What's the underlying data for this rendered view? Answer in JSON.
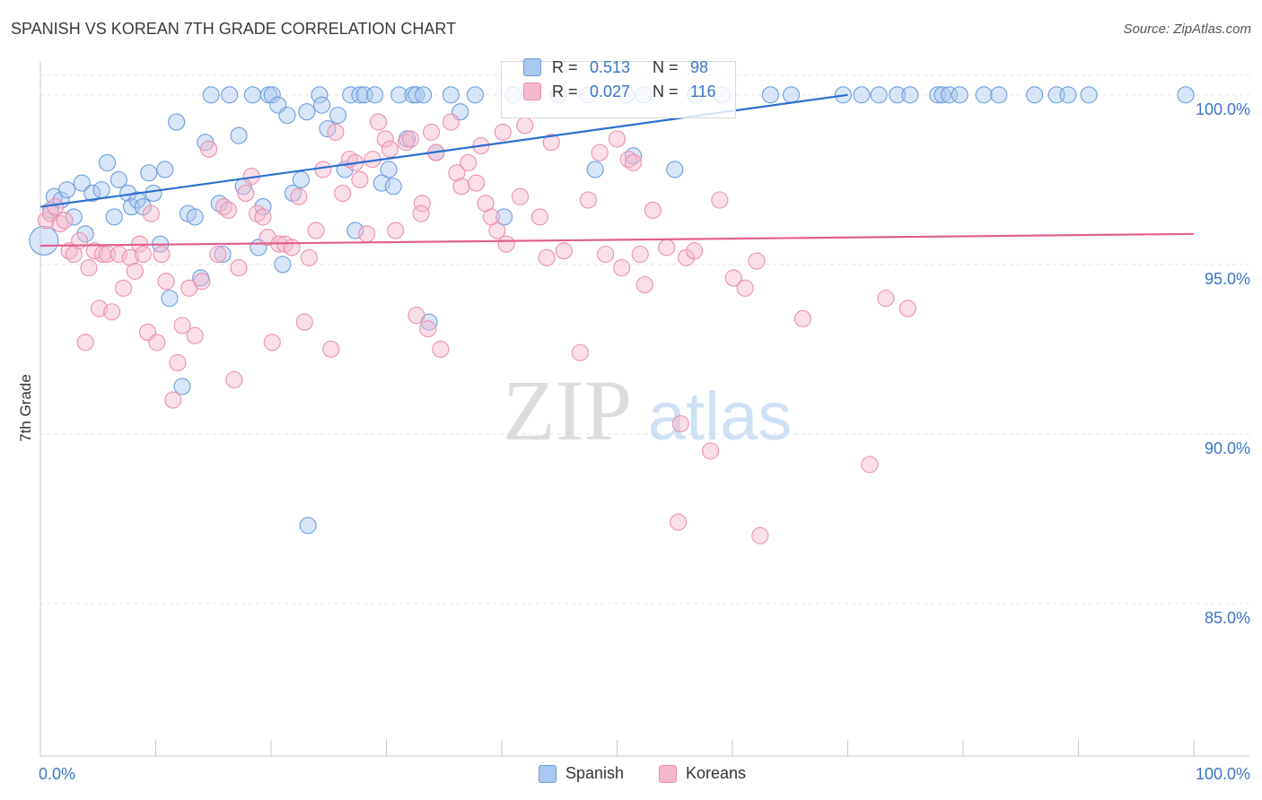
{
  "header": {
    "title": "SPANISH VS KOREAN 7TH GRADE CORRELATION CHART",
    "source": "Source: ZipAtlas.com"
  },
  "watermark": {
    "zip": "ZIP",
    "atlas": "atlas"
  },
  "legend_box": {
    "rows": [
      {
        "r_label": "R =",
        "r_value": "0.513",
        "n_label": "N =",
        "n_value": "98"
      },
      {
        "r_label": "R =",
        "r_value": "0.027",
        "n_label": "N =",
        "n_value": "116"
      }
    ]
  },
  "colors": {
    "spanish_fill": "#aac8f0",
    "spanish_stroke": "#6b9de0",
    "spanish_line": "#2a6fcf",
    "koreans_fill": "#f6b9cc",
    "koreans_stroke": "#ec8fad",
    "koreans_line": "#e0608c",
    "axis_label": "#3a74c8",
    "grid": "#e3e3e3"
  },
  "chart_data": {
    "type": "scatter",
    "title": "SPANISH VS KOREAN 7TH GRADE CORRELATION CHART",
    "xlabel": "",
    "ylabel": "7th Grade",
    "xlim": [
      0,
      100
    ],
    "ylim": [
      80.5,
      101
    ],
    "x_tick_labels": [
      "0.0%",
      "100.0%"
    ],
    "y_ticks": [
      85,
      90,
      95,
      100
    ],
    "y_tick_labels": [
      "85.0%",
      "90.0%",
      "95.0%",
      "100.0%"
    ],
    "grid": true,
    "legend_placement": "bottom-center",
    "series": [
      {
        "name": "Spanish",
        "r": 0.513,
        "n": 98,
        "trend": {
          "x": [
            0,
            70
          ],
          "y": [
            96.7,
            100.0
          ]
        },
        "points": [
          [
            0.3,
            95.7
          ],
          [
            0.9,
            96.6
          ],
          [
            1.2,
            97.0
          ],
          [
            1.8,
            96.9
          ],
          [
            2.3,
            97.2
          ],
          [
            2.9,
            96.4
          ],
          [
            3.6,
            97.4
          ],
          [
            3.9,
            95.9
          ],
          [
            4.5,
            97.1
          ],
          [
            5.3,
            97.2
          ],
          [
            5.8,
            98.0
          ],
          [
            6.4,
            96.4
          ],
          [
            6.8,
            97.5
          ],
          [
            7.6,
            97.1
          ],
          [
            7.9,
            96.7
          ],
          [
            8.4,
            96.9
          ],
          [
            8.9,
            96.7
          ],
          [
            9.4,
            97.7
          ],
          [
            9.8,
            97.1
          ],
          [
            10.4,
            95.6
          ],
          [
            10.8,
            97.8
          ],
          [
            11.2,
            94.0
          ],
          [
            11.8,
            99.2
          ],
          [
            12.3,
            91.4
          ],
          [
            12.8,
            96.5
          ],
          [
            13.4,
            96.4
          ],
          [
            13.9,
            94.6
          ],
          [
            14.3,
            98.6
          ],
          [
            14.8,
            100.0
          ],
          [
            15.5,
            96.8
          ],
          [
            15.8,
            95.3
          ],
          [
            16.4,
            100.0
          ],
          [
            17.2,
            98.8
          ],
          [
            17.6,
            97.3
          ],
          [
            18.4,
            100.0
          ],
          [
            18.9,
            95.5
          ],
          [
            19.3,
            96.7
          ],
          [
            19.8,
            100.0
          ],
          [
            20.1,
            100.0
          ],
          [
            20.6,
            99.7
          ],
          [
            21.0,
            95.0
          ],
          [
            21.4,
            99.4
          ],
          [
            21.9,
            97.1
          ],
          [
            22.6,
            97.5
          ],
          [
            23.2,
            87.3
          ],
          [
            23.1,
            99.5
          ],
          [
            24.2,
            100.0
          ],
          [
            24.4,
            99.7
          ],
          [
            24.9,
            99.0
          ],
          [
            25.8,
            99.4
          ],
          [
            26.4,
            97.8
          ],
          [
            26.9,
            100.0
          ],
          [
            27.3,
            96.0
          ],
          [
            27.7,
            100.0
          ],
          [
            28.1,
            100.0
          ],
          [
            29.0,
            100.0
          ],
          [
            29.6,
            97.4
          ],
          [
            30.2,
            97.8
          ],
          [
            30.6,
            97.3
          ],
          [
            31.1,
            100.0
          ],
          [
            31.8,
            98.7
          ],
          [
            32.3,
            100.0
          ],
          [
            32.6,
            100.0
          ],
          [
            33.2,
            100.0
          ],
          [
            33.7,
            93.3
          ],
          [
            34.3,
            98.3
          ],
          [
            35.6,
            100.0
          ],
          [
            36.4,
            99.5
          ],
          [
            37.7,
            100.0
          ],
          [
            40.2,
            96.4
          ],
          [
            41.0,
            100.0
          ],
          [
            44.9,
            100.0
          ],
          [
            47.5,
            100.0
          ],
          [
            48.1,
            97.8
          ],
          [
            50.8,
            100.0
          ],
          [
            51.4,
            98.2
          ],
          [
            52.3,
            100.0
          ],
          [
            55.0,
            97.8
          ],
          [
            56.8,
            100.0
          ],
          [
            59.1,
            100.0
          ],
          [
            63.3,
            100.0
          ],
          [
            65.1,
            100.0
          ],
          [
            69.6,
            100.0
          ],
          [
            71.2,
            100.0
          ],
          [
            72.7,
            100.0
          ],
          [
            74.3,
            100.0
          ],
          [
            75.4,
            100.0
          ],
          [
            77.8,
            100.0
          ],
          [
            78.2,
            100.0
          ],
          [
            78.8,
            100.0
          ],
          [
            79.7,
            100.0
          ],
          [
            81.8,
            100.0
          ],
          [
            83.1,
            100.0
          ],
          [
            86.2,
            100.0
          ],
          [
            88.1,
            100.0
          ],
          [
            89.1,
            100.0
          ],
          [
            90.9,
            100.0
          ],
          [
            99.3,
            100.0
          ]
        ]
      },
      {
        "name": "Koreans",
        "r": 0.027,
        "n": 116,
        "trend": {
          "x": [
            0,
            100
          ],
          "y": [
            95.55,
            95.9
          ]
        },
        "points": [
          [
            0.5,
            96.3
          ],
          [
            0.9,
            96.5
          ],
          [
            1.3,
            96.7
          ],
          [
            1.7,
            96.2
          ],
          [
            2.1,
            96.3
          ],
          [
            2.5,
            95.4
          ],
          [
            2.9,
            95.3
          ],
          [
            3.4,
            95.7
          ],
          [
            3.9,
            92.7
          ],
          [
            4.2,
            94.9
          ],
          [
            4.7,
            95.4
          ],
          [
            5.1,
            93.7
          ],
          [
            5.4,
            95.3
          ],
          [
            5.8,
            95.3
          ],
          [
            6.2,
            93.6
          ],
          [
            6.8,
            95.3
          ],
          [
            7.2,
            94.3
          ],
          [
            7.8,
            95.2
          ],
          [
            8.2,
            94.8
          ],
          [
            8.6,
            95.6
          ],
          [
            8.9,
            95.3
          ],
          [
            9.3,
            93.0
          ],
          [
            9.6,
            96.5
          ],
          [
            10.1,
            92.7
          ],
          [
            10.5,
            95.3
          ],
          [
            10.9,
            94.5
          ],
          [
            11.5,
            91.0
          ],
          [
            11.9,
            92.1
          ],
          [
            12.3,
            93.2
          ],
          [
            12.9,
            94.3
          ],
          [
            13.4,
            92.9
          ],
          [
            14.0,
            94.5
          ],
          [
            14.6,
            98.4
          ],
          [
            15.4,
            95.3
          ],
          [
            15.9,
            96.7
          ],
          [
            16.3,
            96.6
          ],
          [
            16.8,
            91.6
          ],
          [
            17.2,
            94.9
          ],
          [
            17.8,
            97.1
          ],
          [
            18.3,
            97.6
          ],
          [
            18.8,
            96.5
          ],
          [
            19.3,
            96.4
          ],
          [
            19.7,
            95.8
          ],
          [
            20.1,
            92.7
          ],
          [
            20.7,
            95.6
          ],
          [
            21.2,
            95.6
          ],
          [
            21.8,
            95.5
          ],
          [
            22.4,
            97.0
          ],
          [
            22.9,
            93.3
          ],
          [
            23.3,
            95.2
          ],
          [
            23.9,
            96.0
          ],
          [
            24.5,
            97.8
          ],
          [
            25.2,
            92.5
          ],
          [
            25.6,
            98.9
          ],
          [
            26.2,
            97.1
          ],
          [
            26.8,
            98.1
          ],
          [
            27.3,
            98.0
          ],
          [
            27.7,
            97.5
          ],
          [
            28.3,
            95.9
          ],
          [
            28.8,
            98.1
          ],
          [
            29.3,
            99.2
          ],
          [
            29.9,
            98.7
          ],
          [
            30.3,
            98.4
          ],
          [
            30.8,
            96.0
          ],
          [
            31.7,
            98.6
          ],
          [
            32.1,
            98.7
          ],
          [
            32.6,
            93.5
          ],
          [
            33.1,
            96.8
          ],
          [
            33.6,
            93.1
          ],
          [
            33.9,
            98.9
          ],
          [
            34.3,
            98.3
          ],
          [
            34.7,
            92.5
          ],
          [
            35.6,
            99.2
          ],
          [
            36.1,
            97.7
          ],
          [
            36.5,
            97.3
          ],
          [
            37.1,
            98.0
          ],
          [
            37.8,
            97.4
          ],
          [
            38.2,
            98.5
          ],
          [
            38.6,
            96.8
          ],
          [
            39.1,
            96.4
          ],
          [
            39.6,
            96.0
          ],
          [
            40.1,
            98.9
          ],
          [
            40.4,
            95.6
          ],
          [
            41.6,
            97.0
          ],
          [
            42.0,
            99.1
          ],
          [
            43.3,
            96.4
          ],
          [
            43.9,
            95.2
          ],
          [
            44.3,
            98.6
          ],
          [
            45.4,
            95.4
          ],
          [
            46.8,
            92.4
          ],
          [
            47.5,
            96.9
          ],
          [
            48.5,
            98.3
          ],
          [
            49.0,
            95.3
          ],
          [
            50.0,
            98.7
          ],
          [
            50.4,
            94.9
          ],
          [
            51.0,
            98.1
          ],
          [
            51.4,
            98.0
          ],
          [
            52.0,
            95.3
          ],
          [
            52.4,
            94.4
          ],
          [
            53.1,
            96.6
          ],
          [
            54.3,
            95.5
          ],
          [
            55.5,
            90.3
          ],
          [
            56.0,
            95.2
          ],
          [
            58.1,
            89.5
          ],
          [
            58.9,
            96.9
          ],
          [
            60.1,
            94.6
          ],
          [
            61.1,
            94.3
          ],
          [
            62.1,
            95.1
          ],
          [
            62.4,
            87.0
          ],
          [
            66.1,
            93.4
          ],
          [
            71.9,
            89.1
          ],
          [
            73.3,
            94.0
          ],
          [
            75.2,
            93.7
          ],
          [
            56.7,
            95.4
          ],
          [
            33.0,
            96.5
          ],
          [
            55.3,
            87.4
          ]
        ]
      }
    ]
  },
  "legend": {
    "spanish_label": "Spanish",
    "koreans_label": "Koreans"
  }
}
